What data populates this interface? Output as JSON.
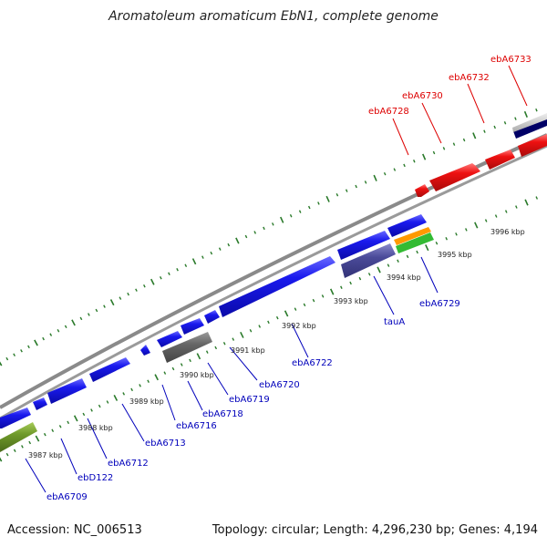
{
  "title": "Aromatoleum aromaticum EbN1, complete genome",
  "footer": {
    "accession": "Accession: NC_006513",
    "summary": "Topology: circular; Length: 4,296,230 bp; Genes: 4,194"
  },
  "colors": {
    "forward_gene": "#1a1aee",
    "reverse_gene": "#1a1aee",
    "highlight_gene": "#ee1111",
    "pseudo_gene": "#666666",
    "taua_gene": "#4a4a99",
    "olive_gene": "#6f9a2a",
    "orange_gene": "#ff9900",
    "green_gene": "#33bb33",
    "backbone": "#8a8a8a",
    "tick": "#2a7a2a",
    "label_blue": "#0000bb",
    "label_red": "#dd0000"
  },
  "scale_labels": [
    "3987 kbp",
    "3988 kbp",
    "3989 kbp",
    "3990 kbp",
    "3991 kbp",
    "3992 kbp",
    "3993 kbp",
    "3994 kbp",
    "3995 kbp",
    "3996 kbp"
  ],
  "lower_gene_labels": [
    "ebA6709",
    "ebD122",
    "ebA6712",
    "ebA6713",
    "ebA6716",
    "ebA6718",
    "ebA6719",
    "ebA6720",
    "ebA6722",
    "tauA",
    "ebA6729"
  ],
  "upper_gene_labels": [
    "ebA6728",
    "ebA6730",
    "ebA6732",
    "ebA6733"
  ]
}
